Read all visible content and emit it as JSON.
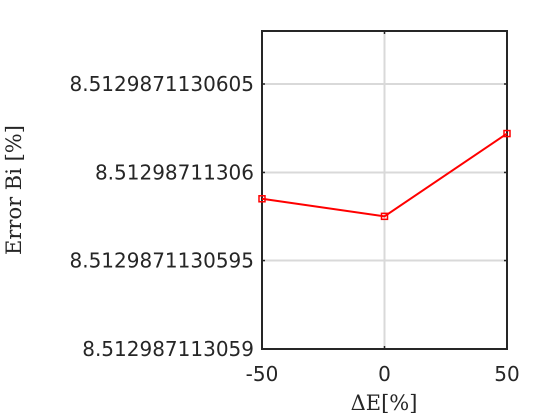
{
  "chart_data": {
    "type": "line",
    "title": "",
    "xlabel": "ΔE[%]",
    "ylabel": "Error Bi [%]",
    "x": [
      -50,
      0,
      50
    ],
    "series": [
      {
        "values": [
          8.51298711305985,
          8.51298711305975,
          8.51298711306022
        ],
        "color": "#ff0000",
        "marker": "square"
      }
    ],
    "xlim": [
      -50,
      50
    ],
    "ylim": [
      8.512987113059,
      8.5129871130608
    ],
    "xticks": [
      -50,
      0,
      50
    ],
    "xtick_labels": [
      "-50",
      "0",
      "50"
    ],
    "yticks": [
      8.512987113059,
      8.5129871130595,
      8.51298711306,
      8.5129871130605
    ],
    "ytick_labels": [
      "8.512987113059",
      "8.5129871130595",
      "8.51298711306",
      "8.5129871130605"
    ],
    "grid": true
  }
}
